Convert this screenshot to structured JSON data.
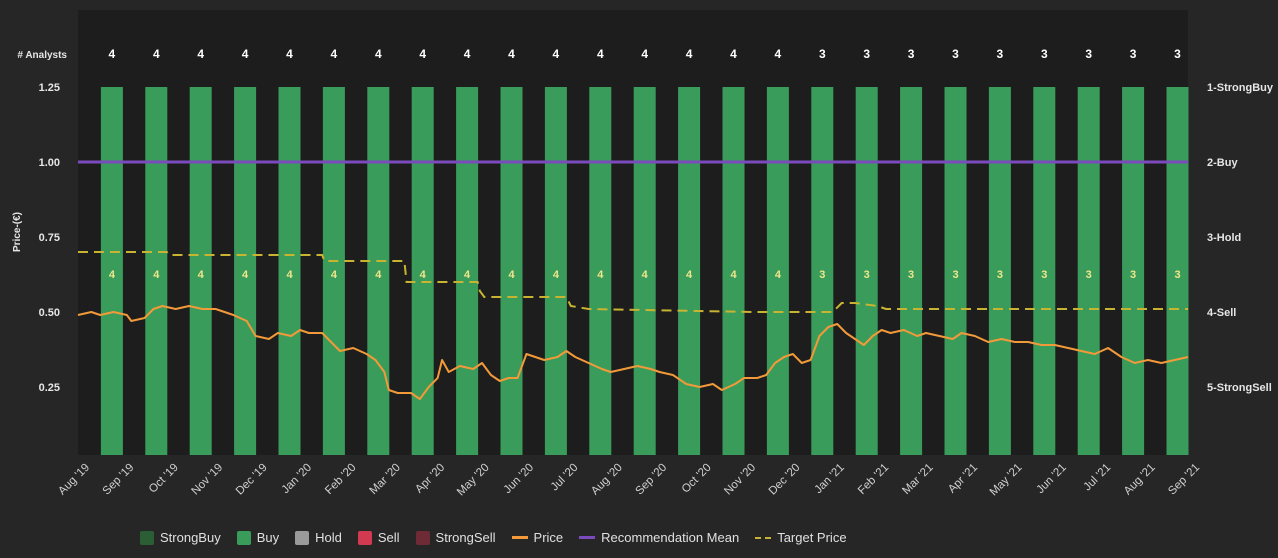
{
  "chart_data": {
    "type": "bar",
    "title": "",
    "ylabel": "Price-(€)",
    "ylim": [
      0,
      1.5
    ],
    "yticks": [
      "1.25",
      "1.00",
      "0.75",
      "0.50",
      "0.25"
    ],
    "right_ticks": [
      "1-StrongBuy",
      "2-Buy",
      "3-Hold",
      "4-Sell",
      "5-StrongSell"
    ],
    "analysts_label": "# Analysts",
    "x_labels": [
      "Aug '19",
      "Sep '19",
      "Oct '19",
      "Nov '19",
      "Dec '19",
      "Jan '20",
      "Feb '20",
      "Mar '20",
      "Apr '20",
      "May '20",
      "Jun '20",
      "Jul '20",
      "Aug '20",
      "Sep '20",
      "Oct '20",
      "Nov '20",
      "Dec '20",
      "Jan '21",
      "Feb '21",
      "Mar '21",
      "Apr '21",
      "May '21",
      "Jun '21",
      "Jul '21",
      "Aug '21",
      "Sep '21"
    ],
    "bar_months": [
      "Sep '19",
      "Oct '19",
      "Nov '19",
      "Dec '19",
      "Jan '20",
      "Feb '20",
      "Mar '20",
      "Apr '20",
      "May '20",
      "Jun '20",
      "Jul '20",
      "Aug '20",
      "Sep '20",
      "Oct '20",
      "Nov '20",
      "Dec '20",
      "Jan '21",
      "Feb '21",
      "Mar '21",
      "Apr '21",
      "May '21",
      "Jun '21",
      "Jul '21",
      "Aug '21",
      "Sep '21"
    ],
    "analyst_counts": [
      "4",
      "4",
      "4",
      "4",
      "4",
      "4",
      "4",
      "4",
      "4",
      "4",
      "4",
      "4",
      "4",
      "4",
      "4",
      "4",
      "3",
      "3",
      "3",
      "3",
      "3",
      "3",
      "3",
      "3",
      "3"
    ],
    "series": [
      {
        "name": "StrongBuy",
        "values": [
          0,
          0,
          0,
          0,
          0,
          0,
          0,
          0,
          0,
          0,
          0,
          0,
          0,
          0,
          0,
          0,
          0,
          0,
          0,
          0,
          0,
          0,
          0,
          0,
          0
        ]
      },
      {
        "name": "Buy",
        "values": [
          4,
          4,
          4,
          4,
          4,
          4,
          4,
          4,
          4,
          4,
          4,
          4,
          4,
          4,
          4,
          4,
          3,
          3,
          3,
          3,
          3,
          3,
          3,
          3,
          3
        ]
      },
      {
        "name": "Hold",
        "values": [
          0,
          0,
          0,
          0,
          0,
          0,
          0,
          0,
          0,
          0,
          0,
          0,
          0,
          0,
          0,
          0,
          0,
          0,
          0,
          0,
          0,
          0,
          0,
          0,
          0
        ]
      },
      {
        "name": "Sell",
        "values": [
          0,
          0,
          0,
          0,
          0,
          0,
          0,
          0,
          0,
          0,
          0,
          0,
          0,
          0,
          0,
          0,
          0,
          0,
          0,
          0,
          0,
          0,
          0,
          0,
          0
        ]
      },
      {
        "name": "StrongSell",
        "values": [
          0,
          0,
          0,
          0,
          0,
          0,
          0,
          0,
          0,
          0,
          0,
          0,
          0,
          0,
          0,
          0,
          0,
          0,
          0,
          0,
          0,
          0,
          0,
          0,
          0
        ]
      }
    ],
    "recommendation_mean": 2.0,
    "target_price": [
      {
        "t": 0,
        "v": 0.7
      },
      {
        "t": 2.0,
        "v": 0.7
      },
      {
        "t": 2.05,
        "v": 0.69
      },
      {
        "t": 5.5,
        "v": 0.69
      },
      {
        "t": 5.55,
        "v": 0.67
      },
      {
        "t": 7.35,
        "v": 0.67
      },
      {
        "t": 7.4,
        "v": 0.6
      },
      {
        "t": 9.0,
        "v": 0.6
      },
      {
        "t": 9.05,
        "v": 0.57
      },
      {
        "t": 9.15,
        "v": 0.55
      },
      {
        "t": 11.0,
        "v": 0.55
      },
      {
        "t": 11.1,
        "v": 0.52
      },
      {
        "t": 11.5,
        "v": 0.51
      },
      {
        "t": 15.2,
        "v": 0.5
      },
      {
        "t": 17.0,
        "v": 0.5
      },
      {
        "t": 17.2,
        "v": 0.53
      },
      {
        "t": 17.5,
        "v": 0.53
      },
      {
        "t": 18.0,
        "v": 0.52
      },
      {
        "t": 18.2,
        "v": 0.51
      },
      {
        "t": 25,
        "v": 0.51
      }
    ],
    "price": [
      {
        "t": 0,
        "v": 0.49
      },
      {
        "t": 0.3,
        "v": 0.5
      },
      {
        "t": 0.5,
        "v": 0.49
      },
      {
        "t": 0.8,
        "v": 0.5
      },
      {
        "t": 1.1,
        "v": 0.49
      },
      {
        "t": 1.2,
        "v": 0.47
      },
      {
        "t": 1.5,
        "v": 0.48
      },
      {
        "t": 1.7,
        "v": 0.51
      },
      {
        "t": 1.9,
        "v": 0.52
      },
      {
        "t": 2.2,
        "v": 0.51
      },
      {
        "t": 2.5,
        "v": 0.52
      },
      {
        "t": 2.8,
        "v": 0.51
      },
      {
        "t": 3.1,
        "v": 0.51
      },
      {
        "t": 3.5,
        "v": 0.49
      },
      {
        "t": 3.8,
        "v": 0.47
      },
      {
        "t": 4.0,
        "v": 0.42
      },
      {
        "t": 4.3,
        "v": 0.41
      },
      {
        "t": 4.5,
        "v": 0.43
      },
      {
        "t": 4.8,
        "v": 0.42
      },
      {
        "t": 5.0,
        "v": 0.44
      },
      {
        "t": 5.2,
        "v": 0.43
      },
      {
        "t": 5.5,
        "v": 0.43
      },
      {
        "t": 5.7,
        "v": 0.4
      },
      {
        "t": 5.9,
        "v": 0.37
      },
      {
        "t": 6.2,
        "v": 0.38
      },
      {
        "t": 6.5,
        "v": 0.36
      },
      {
        "t": 6.7,
        "v": 0.34
      },
      {
        "t": 6.9,
        "v": 0.3
      },
      {
        "t": 7.0,
        "v": 0.24
      },
      {
        "t": 7.2,
        "v": 0.23
      },
      {
        "t": 7.5,
        "v": 0.23
      },
      {
        "t": 7.7,
        "v": 0.21
      },
      {
        "t": 7.9,
        "v": 0.25
      },
      {
        "t": 8.1,
        "v": 0.28
      },
      {
        "t": 8.2,
        "v": 0.34
      },
      {
        "t": 8.35,
        "v": 0.3
      },
      {
        "t": 8.6,
        "v": 0.32
      },
      {
        "t": 8.9,
        "v": 0.31
      },
      {
        "t": 9.1,
        "v": 0.33
      },
      {
        "t": 9.3,
        "v": 0.29
      },
      {
        "t": 9.5,
        "v": 0.27
      },
      {
        "t": 9.7,
        "v": 0.28
      },
      {
        "t": 9.9,
        "v": 0.28
      },
      {
        "t": 10.1,
        "v": 0.36
      },
      {
        "t": 10.3,
        "v": 0.35
      },
      {
        "t": 10.5,
        "v": 0.34
      },
      {
        "t": 10.8,
        "v": 0.35
      },
      {
        "t": 11.0,
        "v": 0.37
      },
      {
        "t": 11.2,
        "v": 0.35
      },
      {
        "t": 11.5,
        "v": 0.33
      },
      {
        "t": 11.8,
        "v": 0.31
      },
      {
        "t": 12.0,
        "v": 0.3
      },
      {
        "t": 12.3,
        "v": 0.31
      },
      {
        "t": 12.6,
        "v": 0.32
      },
      {
        "t": 12.9,
        "v": 0.31
      },
      {
        "t": 13.1,
        "v": 0.3
      },
      {
        "t": 13.4,
        "v": 0.29
      },
      {
        "t": 13.7,
        "v": 0.26
      },
      {
        "t": 14.0,
        "v": 0.25
      },
      {
        "t": 14.3,
        "v": 0.26
      },
      {
        "t": 14.5,
        "v": 0.24
      },
      {
        "t": 14.8,
        "v": 0.26
      },
      {
        "t": 15.0,
        "v": 0.28
      },
      {
        "t": 15.3,
        "v": 0.28
      },
      {
        "t": 15.5,
        "v": 0.29
      },
      {
        "t": 15.7,
        "v": 0.33
      },
      {
        "t": 15.9,
        "v": 0.35
      },
      {
        "t": 16.1,
        "v": 0.36
      },
      {
        "t": 16.3,
        "v": 0.33
      },
      {
        "t": 16.5,
        "v": 0.34
      },
      {
        "t": 16.7,
        "v": 0.42
      },
      {
        "t": 16.9,
        "v": 0.45
      },
      {
        "t": 17.1,
        "v": 0.46
      },
      {
        "t": 17.3,
        "v": 0.43
      },
      {
        "t": 17.5,
        "v": 0.41
      },
      {
        "t": 17.7,
        "v": 0.39
      },
      {
        "t": 17.9,
        "v": 0.42
      },
      {
        "t": 18.1,
        "v": 0.44
      },
      {
        "t": 18.3,
        "v": 0.43
      },
      {
        "t": 18.6,
        "v": 0.44
      },
      {
        "t": 18.9,
        "v": 0.42
      },
      {
        "t": 19.1,
        "v": 0.43
      },
      {
        "t": 19.4,
        "v": 0.42
      },
      {
        "t": 19.7,
        "v": 0.41
      },
      {
        "t": 19.9,
        "v": 0.43
      },
      {
        "t": 20.2,
        "v": 0.42
      },
      {
        "t": 20.5,
        "v": 0.4
      },
      {
        "t": 20.8,
        "v": 0.41
      },
      {
        "t": 21.1,
        "v": 0.4
      },
      {
        "t": 21.4,
        "v": 0.4
      },
      {
        "t": 21.7,
        "v": 0.39
      },
      {
        "t": 22.0,
        "v": 0.39
      },
      {
        "t": 22.3,
        "v": 0.38
      },
      {
        "t": 22.6,
        "v": 0.37
      },
      {
        "t": 22.9,
        "v": 0.36
      },
      {
        "t": 23.2,
        "v": 0.38
      },
      {
        "t": 23.5,
        "v": 0.35
      },
      {
        "t": 23.8,
        "v": 0.33
      },
      {
        "t": 24.1,
        "v": 0.34
      },
      {
        "t": 24.4,
        "v": 0.33
      },
      {
        "t": 24.7,
        "v": 0.34
      },
      {
        "t": 25,
        "v": 0.35
      }
    ]
  },
  "legend": [
    {
      "key": "strongbuy",
      "label": "StrongBuy",
      "kind": "box",
      "color": "#2c5e36"
    },
    {
      "key": "buy",
      "label": "Buy",
      "kind": "box",
      "color": "#3a9c5a"
    },
    {
      "key": "hold",
      "label": "Hold",
      "kind": "box",
      "color": "#9a9a9a"
    },
    {
      "key": "sell",
      "label": "Sell",
      "kind": "box",
      "color": "#d23a52"
    },
    {
      "key": "strongsell",
      "label": "StrongSell",
      "kind": "box",
      "color": "#6e2a35"
    },
    {
      "key": "price",
      "label": "Price",
      "kind": "line",
      "color": "#f29a3a"
    },
    {
      "key": "recommendation-mean",
      "label": "Recommendation Mean",
      "kind": "line",
      "color": "#7b4bbd"
    },
    {
      "key": "target-price",
      "label": "Target Price",
      "kind": "dash",
      "color": "#c9b431"
    }
  ],
  "colors": {
    "buy": "#3a9c5a",
    "price": "#f29a3a",
    "mean": "#7b4bbd",
    "target": "#c9b431",
    "plot_bg": "#1d1d1d",
    "grid": "#333333"
  }
}
